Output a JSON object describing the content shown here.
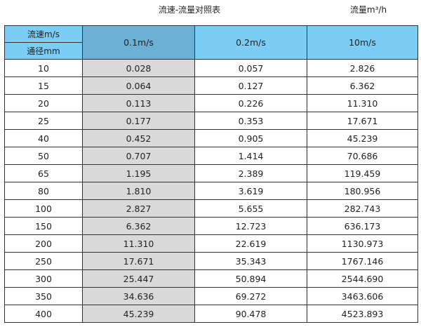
{
  "title": "流速-流量对照表",
  "unit_label": "流量m³/h",
  "header": {
    "speed_label": "流速m/s",
    "diameter_label": "通径mm",
    "columns": [
      "0.1m/s",
      "0.2m/s",
      "10m/s"
    ]
  },
  "colors": {
    "header": "#7ccdf5",
    "header_selected": "#6cb0d6",
    "selected_column": "#d9d9d9"
  },
  "rows": [
    [
      "10",
      "0.028",
      "0.057",
      "2.826"
    ],
    [
      "15",
      "0.064",
      "0.127",
      "6.362"
    ],
    [
      "20",
      "0.113",
      "0.226",
      "11.310"
    ],
    [
      "25",
      "0.177",
      "0.353",
      "17.671"
    ],
    [
      "40",
      "0.452",
      "0.905",
      "45.239"
    ],
    [
      "50",
      "0.707",
      "1.414",
      "70.686"
    ],
    [
      "65",
      "1.195",
      "2.389",
      "119.459"
    ],
    [
      "80",
      "1.810",
      "3.619",
      "180.956"
    ],
    [
      "100",
      "2.827",
      "5.655",
      "282.743"
    ],
    [
      "150",
      "6.362",
      "12.723",
      "636.173"
    ],
    [
      "200",
      "11.310",
      "22.619",
      "1130.973"
    ],
    [
      "250",
      "17.671",
      "35.343",
      "1767.146"
    ],
    [
      "300",
      "25.447",
      "50.894",
      "2544.690"
    ],
    [
      "350",
      "34.636",
      "69.272",
      "3463.606"
    ],
    [
      "400",
      "45.239",
      "90.478",
      "4523.893"
    ]
  ]
}
